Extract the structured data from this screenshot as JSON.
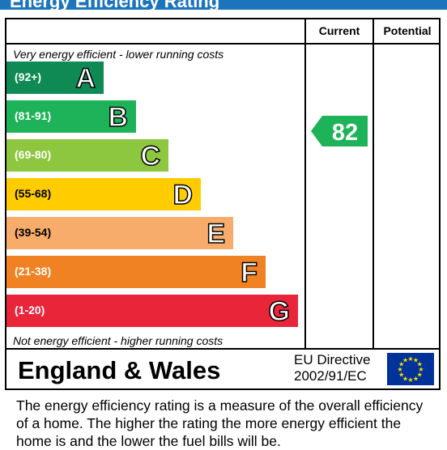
{
  "title": "Energy Efficiency Rating",
  "headers": {
    "current": "Current",
    "potential": "Potential"
  },
  "top_caption": "Very energy efficient - lower running costs",
  "bottom_caption": "Not energy efficient - higher running costs",
  "colors": {
    "title_bar": "#1c74bc",
    "A": "#0f8a55",
    "B": "#1eb358",
    "C": "#8dc63f",
    "D": "#ffcc00",
    "E": "#f7ac6b",
    "F": "#f08223",
    "G": "#e9253a",
    "flag": "#003399",
    "flag_stars": "#ffdd00"
  },
  "chart_data": {
    "type": "bar",
    "categories": [
      "A",
      "B",
      "C",
      "D",
      "E",
      "F",
      "G"
    ],
    "ranges": [
      "(92+)",
      "(81-91)",
      "(69-80)",
      "(55-68)",
      "(39-54)",
      "(21-38)",
      "(1-20)"
    ],
    "current_rating": 82,
    "current_band": "B",
    "potential_rating": null
  },
  "footer": {
    "region": "England & Wales",
    "directive_line1": "EU Directive",
    "directive_line2": "2002/91/EC"
  },
  "description": "The energy efficiency rating is a measure of the overall efficiency of a home.  The higher the rating the more energy efficient the home is and the lower the fuel bills will be."
}
